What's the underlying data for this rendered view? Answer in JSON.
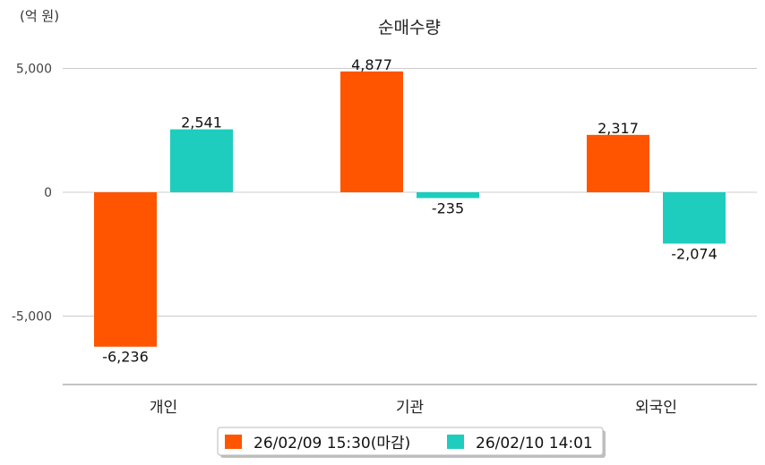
{
  "chart_data": {
    "type": "bar",
    "title": "순매수량",
    "unit_label": "(억 원)",
    "xlabel": "",
    "ylabel": "",
    "categories": [
      "개인",
      "기관",
      "외국인"
    ],
    "series": [
      {
        "name": "26/02/09 15:30(마감)",
        "color": "#FF5500",
        "values": [
          -6236,
          4877,
          2317
        ],
        "labels": [
          "-6,236",
          "4,877",
          "2,317"
        ]
      },
      {
        "name": "26/02/10 14:01",
        "color": "#1ECDBE",
        "values": [
          2541,
          -235,
          -2074
        ],
        "labels": [
          "2,541",
          "-235",
          "-2,074"
        ]
      }
    ],
    "yticks": [
      5000,
      0,
      -5000
    ],
    "ytick_labels": [
      "5,000",
      "0",
      "-5,000"
    ],
    "ylim": [
      -7800,
      6000
    ],
    "grid": true,
    "legend_position": "bottom"
  }
}
